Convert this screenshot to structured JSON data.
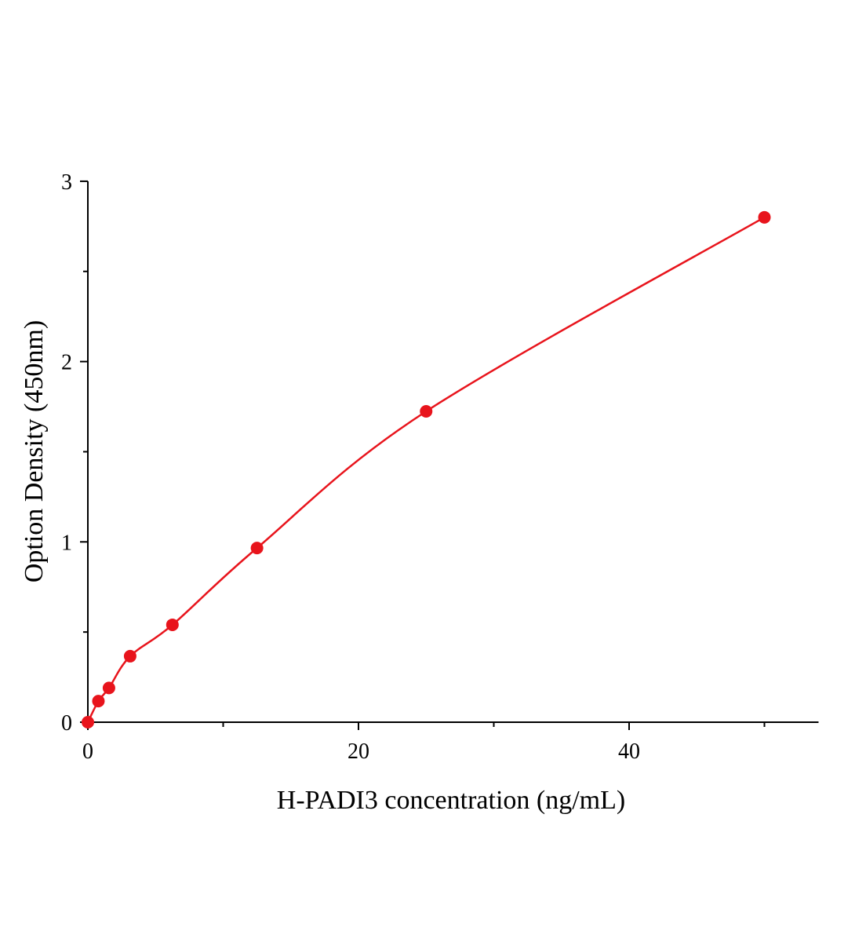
{
  "chart_data": {
    "type": "scatter",
    "title": "",
    "xlabel": "H-PADI3 concentration (ng/mL)",
    "ylabel": "Option Density (450nm)",
    "xlim": [
      0,
      54
    ],
    "ylim": [
      0,
      3
    ],
    "x_ticks": [
      0,
      20,
      40
    ],
    "x_minor_ticks": [
      10,
      30,
      50
    ],
    "y_ticks": [
      0,
      1,
      2,
      3
    ],
    "y_minor_ticks": [
      0.5,
      1.5,
      2.5
    ],
    "x_tick_labels": [
      "0",
      "20",
      "40"
    ],
    "y_tick_labels": [
      "0",
      "1",
      "2",
      "3"
    ],
    "grid": false,
    "series": [
      {
        "color": "#e8141c",
        "marker": "circle",
        "fit_line": true,
        "points": [
          {
            "x": 0,
            "y": 0.0
          },
          {
            "x": 0.78,
            "y": 0.117
          },
          {
            "x": 1.56,
            "y": 0.19
          },
          {
            "x": 3.125,
            "y": 0.366
          },
          {
            "x": 6.25,
            "y": 0.54
          },
          {
            "x": 12.5,
            "y": 0.966
          },
          {
            "x": 25,
            "y": 1.724
          },
          {
            "x": 50,
            "y": 2.8
          }
        ]
      }
    ]
  }
}
